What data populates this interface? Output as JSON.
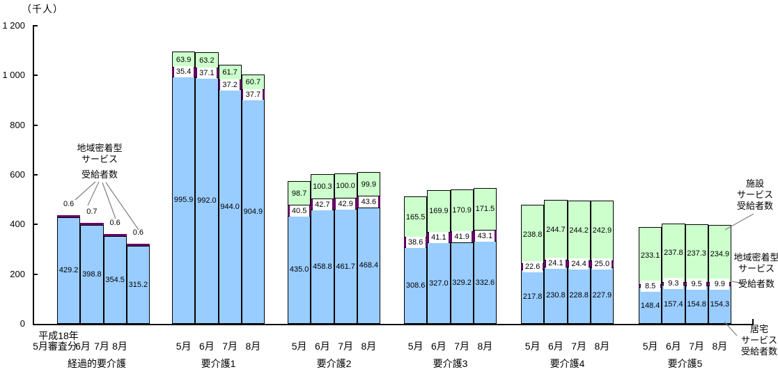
{
  "chart_data": {
    "type": "bar",
    "stacked": true,
    "title": "",
    "unit_label": "（千人）",
    "ylabel": "千人",
    "ylim": [
      0,
      1200
    ],
    "grid": false,
    "y_ticks": [
      {
        "value": 0,
        "label": "0"
      },
      {
        "value": 200,
        "label": "200"
      },
      {
        "value": 400,
        "label": "400"
      },
      {
        "value": 600,
        "label": "600"
      },
      {
        "value": 800,
        "label": "800"
      },
      {
        "value": 1000,
        "label": "1 000"
      },
      {
        "value": 1200,
        "label": "1 200"
      }
    ],
    "series_meta": {
      "home": {
        "name": "居宅サービス受給者数",
        "color": "#99CCFF"
      },
      "community": {
        "name": "地域密着型サービス受給者数",
        "color": "#660066"
      },
      "facility": {
        "name": "施設サービス受給者数",
        "color": "#CCFFCC"
      }
    },
    "groups": [
      {
        "label": "経過的要介護",
        "year_line": "平成18年",
        "months": [
          "5月審査分",
          "6月",
          "7月",
          "8月"
        ],
        "home": [
          429.2,
          398.8,
          354.5,
          315.2
        ],
        "community": [
          0.6,
          0.7,
          0.6,
          0.6
        ],
        "facility": null,
        "community_labels_outside": true
      },
      {
        "label": "要介護1",
        "months": [
          "5月",
          "6月",
          "7月",
          "8月"
        ],
        "home": [
          995.9,
          992.0,
          944.0,
          904.9
        ],
        "community": [
          35.4,
          37.1,
          37.2,
          37.7
        ],
        "facility": [
          63.9,
          63.2,
          61.7,
          60.7
        ]
      },
      {
        "label": "要介護2",
        "months": [
          "5月",
          "6月",
          "7月",
          "8月"
        ],
        "home": [
          435.0,
          458.8,
          461.7,
          468.4
        ],
        "community": [
          40.5,
          42.7,
          42.9,
          43.6
        ],
        "facility": [
          98.7,
          100.3,
          100.0,
          99.9
        ]
      },
      {
        "label": "要介護3",
        "months": [
          "5月",
          "6月",
          "7月",
          "8月"
        ],
        "home": [
          308.6,
          327.0,
          329.2,
          332.6
        ],
        "community": [
          38.6,
          41.1,
          41.9,
          43.1
        ],
        "facility": [
          165.5,
          169.9,
          170.9,
          171.5
        ]
      },
      {
        "label": "要介護4",
        "months": [
          "5月",
          "6月",
          "7月",
          "8月"
        ],
        "home": [
          217.8,
          230.8,
          228.8,
          227.9
        ],
        "community": [
          22.6,
          24.1,
          24.4,
          25.0
        ],
        "facility": [
          238.8,
          244.7,
          244.2,
          242.9
        ]
      },
      {
        "label": "要介護5",
        "months": [
          "5月",
          "6月",
          "7月",
          "8月"
        ],
        "home": [
          148.4,
          157.4,
          154.8,
          154.3
        ],
        "community": [
          8.5,
          9.3,
          9.5,
          9.9
        ],
        "facility": [
          233.1,
          237.8,
          237.3,
          234.9
        ]
      }
    ],
    "annotations": {
      "community_left": {
        "line1": "地域密着型",
        "line2": "サービス",
        "line3": "受給者数"
      },
      "facility_right": {
        "line1": "施設",
        "line2": "サービス",
        "line3": "受給者数"
      },
      "community_right": {
        "line1": "地域密着型",
        "line2": "サービス",
        "line3": "受給者数"
      },
      "home_right": {
        "line1": "居宅",
        "line2": "サービス",
        "line3": "受給者数"
      }
    },
    "colors": {
      "home": "#99CCFF",
      "community": "#660066",
      "facility": "#CCFFCC",
      "axis": "#000000",
      "leader_line": "#7f7f7f"
    }
  }
}
